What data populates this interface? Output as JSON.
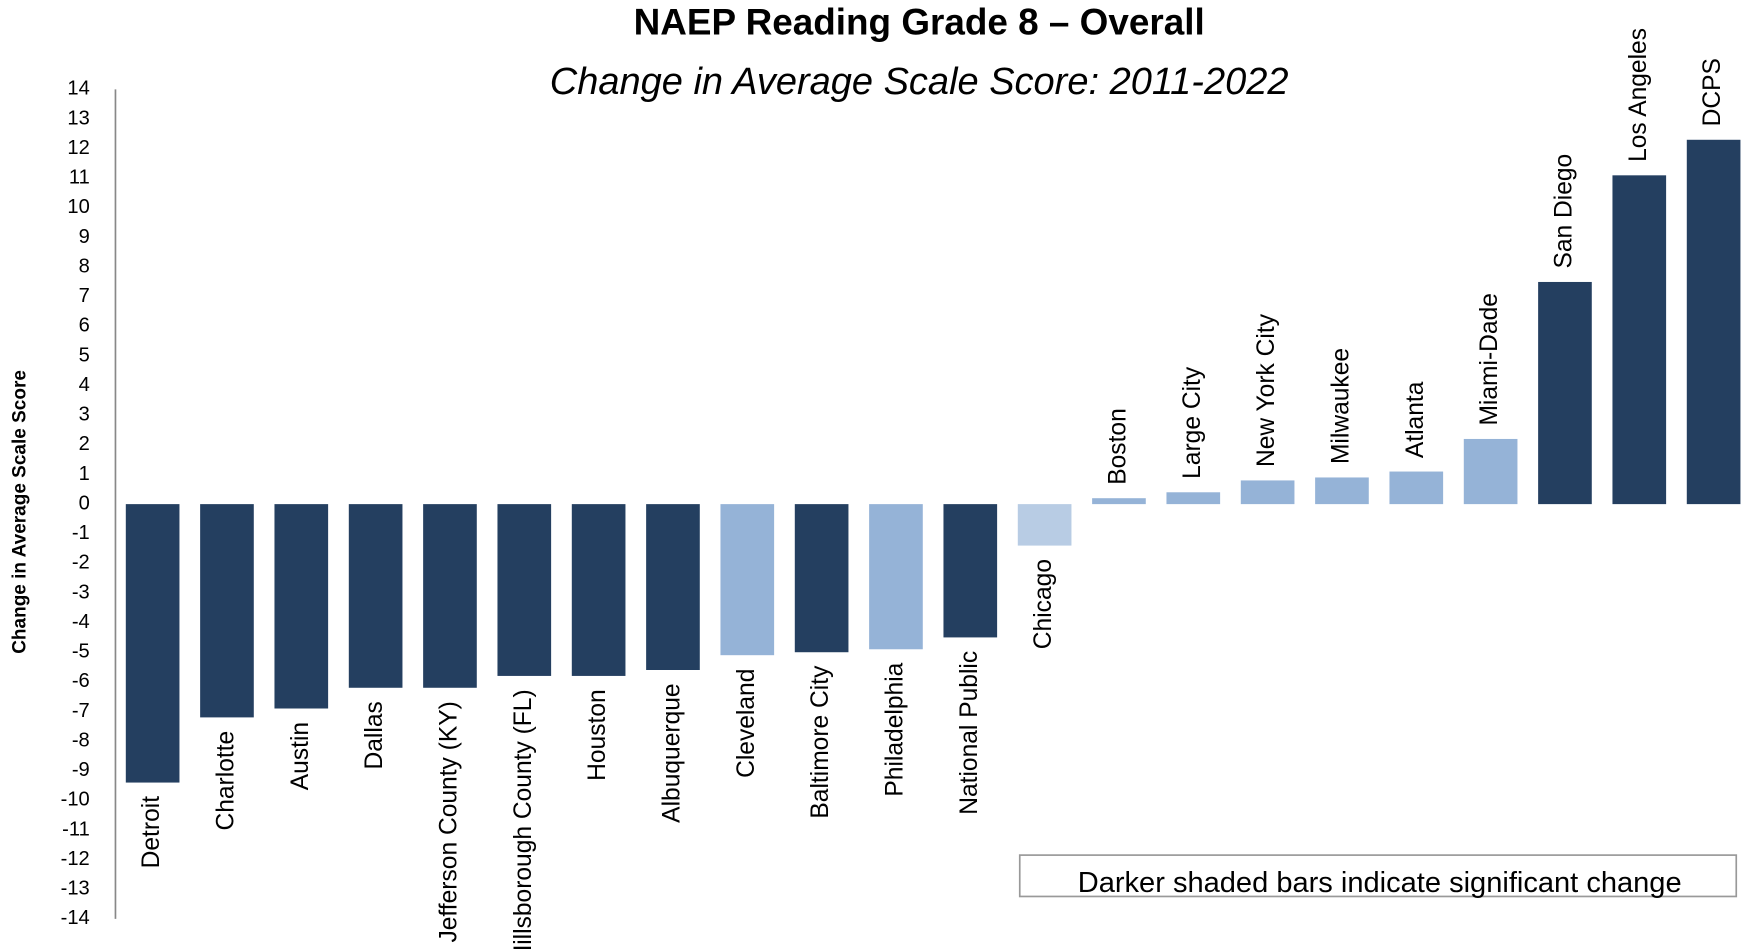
{
  "chart_data": {
    "type": "bar",
    "title": "NAEP Reading Grade 8 – Overall",
    "subtitle": "Change in Average Scale Score: 2011-2022",
    "y_label": "Change in Average Scale Score",
    "annotation": "Darker shaded bars indicate significant change",
    "categories": [
      "Detroit",
      "Charlotte",
      "Austin",
      "Dallas",
      "Jefferson County (KY)",
      "Hillsborough County (FL)",
      "Houston",
      "Albuquerque",
      "Cleveland",
      "Baltimore City",
      "Philadelphia",
      "National Public",
      "Chicago",
      "Boston",
      "Large City",
      "New York City",
      "Milwaukee",
      "Atlanta",
      "Miami-Dade",
      "San Diego",
      "Los Angeles",
      "DCPS"
    ],
    "values": [
      -9.4,
      -7.2,
      -6.9,
      -6.2,
      -6.2,
      -5.8,
      -5.8,
      -5.6,
      -5.1,
      -5.0,
      -4.9,
      -4.5,
      -1.4,
      0.2,
      0.4,
      0.8,
      0.9,
      1.1,
      2.2,
      7.5,
      11.1,
      12.3
    ],
    "colors": [
      "#243f60",
      "#243f60",
      "#243f60",
      "#243f60",
      "#243f60",
      "#243f60",
      "#243f60",
      "#243f60",
      "#95b3d7",
      "#243f60",
      "#95b3d7",
      "#243f60",
      "#b8cce4",
      "#95b3d7",
      "#95b3d7",
      "#95b3d7",
      "#95b3d7",
      "#95b3d7",
      "#95b3d7",
      "#243f60",
      "#243f60",
      "#243f60"
    ],
    "ylim": [
      -14,
      14
    ],
    "yticks": [
      -14,
      -13,
      -12,
      -11,
      -10,
      -9,
      -8,
      -7,
      -6,
      -5,
      -4,
      -3,
      -2,
      -1,
      0,
      1,
      2,
      3,
      4,
      5,
      6,
      7,
      8,
      9,
      10,
      11,
      12,
      13,
      14
    ],
    "grid": false
  }
}
